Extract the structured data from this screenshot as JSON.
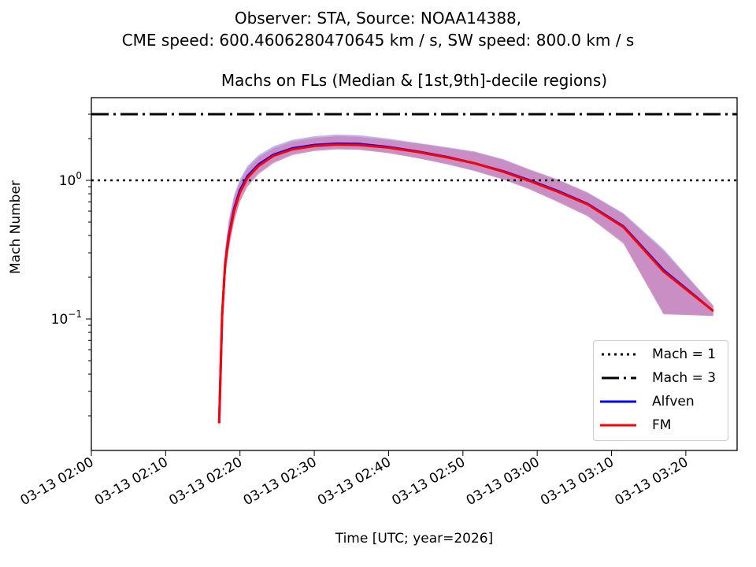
{
  "figure": {
    "suptitle_line1": "Observer: STA, Source: NOAA14388,",
    "suptitle_line2": "CME speed: 600.4606280470645 km / s, SW speed: 800.0 km / s"
  },
  "chart_data": {
    "type": "line",
    "title": "Machs on FLs (Median & [1st,9th]-decile regions)",
    "xlabel": "Time [UTC; year=2026]",
    "ylabel": "Mach Number",
    "yscale": "log",
    "ylim": [
      0.01125,
      3.95
    ],
    "xlim_minutes_after_0200": [
      0,
      86.9
    ],
    "x_tick_labels": [
      "03-13 02:00",
      "03-13 02:10",
      "03-13 02:20",
      "03-13 02:30",
      "03-13 02:40",
      "03-13 02:50",
      "03-13 03:00",
      "03-13 03:10",
      "03-13 03:20"
    ],
    "x_tick_minutes": [
      0,
      10,
      20,
      30,
      40,
      50,
      60,
      70,
      80
    ],
    "y_tick_labels": [
      {
        "base": "10",
        "exp": "0",
        "value": 1
      },
      {
        "base": "10",
        "exp": "−1",
        "value": 0.1
      }
    ],
    "hlines": [
      {
        "name": "Mach = 1",
        "value": 1,
        "style": "dotted",
        "color": "#000000"
      },
      {
        "name": "Mach = 3",
        "value": 3,
        "style": "dashdot",
        "color": "#000000"
      }
    ],
    "x_minutes": [
      17.2,
      17.6,
      18.0,
      18.5,
      19.2,
      20.0,
      21.0,
      22.5,
      24.5,
      27.0,
      30.0,
      33.0,
      36.0,
      40.0,
      44.0,
      48.0,
      51.5,
      55.5,
      59.0,
      62.7,
      66.8,
      71.6,
      77.0,
      83.7
    ],
    "series": [
      {
        "name": "Alfven",
        "color": "#0000ff",
        "values": [
          0.0177,
          0.107,
          0.25,
          0.4,
          0.62,
          0.85,
          1.07,
          1.3,
          1.53,
          1.7,
          1.8,
          1.84,
          1.83,
          1.74,
          1.61,
          1.47,
          1.33,
          1.16,
          1.0,
          0.84,
          0.675,
          0.465,
          0.225,
          0.114
        ],
        "lower": [
          0.016,
          0.09,
          0.2,
          0.33,
          0.52,
          0.73,
          0.93,
          1.14,
          1.36,
          1.55,
          1.66,
          1.7,
          1.68,
          1.58,
          1.45,
          1.31,
          1.18,
          1.02,
          0.87,
          0.71,
          0.56,
          0.36,
          0.11,
          0.106
        ],
        "upper": [
          0.019,
          0.13,
          0.32,
          0.52,
          0.78,
          1.02,
          1.27,
          1.52,
          1.76,
          1.96,
          2.08,
          2.14,
          2.12,
          2.0,
          1.86,
          1.73,
          1.62,
          1.42,
          1.2,
          1.02,
          0.82,
          0.58,
          0.32,
          0.125
        ]
      },
      {
        "name": "FM",
        "color": "#ff0000",
        "values": [
          0.0177,
          0.107,
          0.25,
          0.39,
          0.6,
          0.82,
          1.04,
          1.27,
          1.5,
          1.67,
          1.77,
          1.81,
          1.8,
          1.72,
          1.6,
          1.46,
          1.33,
          1.15,
          0.99,
          0.83,
          0.67,
          0.46,
          0.22,
          0.114
        ],
        "lower": [
          0.016,
          0.09,
          0.2,
          0.32,
          0.5,
          0.7,
          0.9,
          1.11,
          1.33,
          1.52,
          1.63,
          1.67,
          1.66,
          1.57,
          1.44,
          1.3,
          1.17,
          1.01,
          0.86,
          0.7,
          0.55,
          0.35,
          0.108,
          0.105
        ],
        "upper": [
          0.019,
          0.13,
          0.31,
          0.5,
          0.75,
          0.98,
          1.22,
          1.47,
          1.7,
          1.9,
          2.02,
          2.08,
          2.06,
          1.96,
          1.84,
          1.71,
          1.6,
          1.4,
          1.19,
          1.01,
          0.81,
          0.57,
          0.31,
          0.124
        ]
      }
    ],
    "band_colors": {
      "Alfven": "#b3b3f5",
      "FM": "#cc88bb"
    },
    "legend": {
      "position": "lower-right",
      "entries": [
        "Mach = 1",
        "Mach = 3",
        "Alfven",
        "FM"
      ]
    },
    "grid": false
  }
}
